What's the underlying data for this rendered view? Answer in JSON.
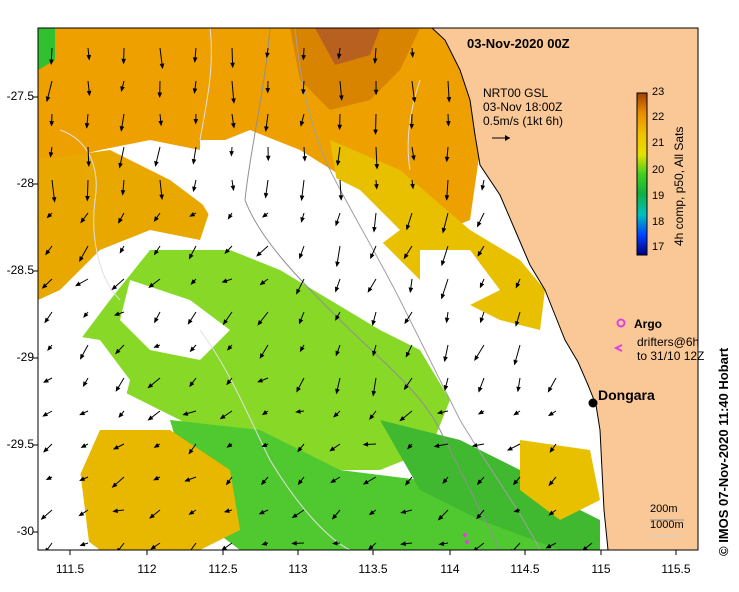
{
  "map": {
    "title": "03-Nov-2020 00Z",
    "velocity_info": [
      "NRT00 GSL",
      "03-Nov 18:00Z",
      "0.5m/s (1kt 6h)"
    ],
    "colorbar": {
      "label": "4h comp, p50, All Sats",
      "min": 17,
      "max": 23,
      "ticks": [
        17,
        18,
        19,
        20,
        21,
        22,
        23
      ]
    },
    "legend": {
      "argo_label": "Argo",
      "drifters_label": [
        "drifters@6h",
        "to 31/10 12Z"
      ]
    },
    "place": {
      "name": "Dongara",
      "lon": 114.93,
      "lat": -29.25
    },
    "depth_scale": [
      "200m",
      "1000m"
    ],
    "credit": "© IMOS 07-Nov-2020 11:40 Hobart",
    "axes": {
      "lon_range": [
        111.3,
        115.6
      ],
      "lat_range": [
        -30.1,
        -27.1
      ],
      "lon_ticks": [
        "111.5",
        "112",
        "112.5",
        "113",
        "113.5",
        "114",
        "114.5",
        "115",
        "115.5"
      ],
      "lat_ticks": [
        "-27.5",
        "-28",
        "-28.5",
        "-29",
        "-29.5",
        "-30"
      ]
    },
    "colors": {
      "land": "#fac896",
      "warm": "#f0a000",
      "mid": "#e8c800",
      "cool": "#70d820",
      "green": "#30c030",
      "argo": "#e040e0"
    }
  }
}
